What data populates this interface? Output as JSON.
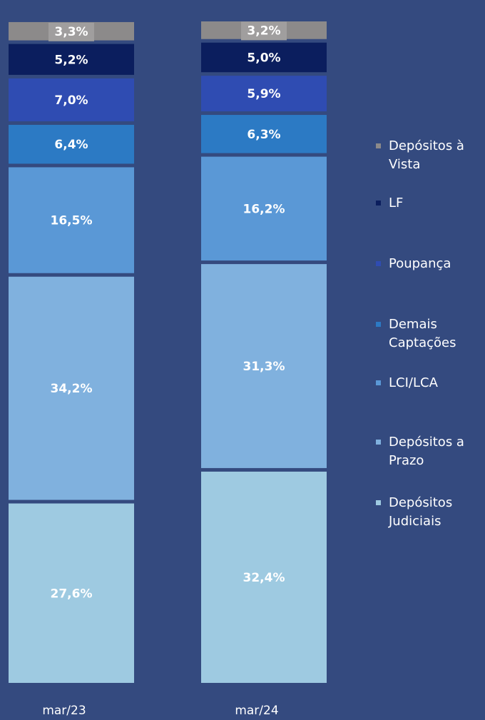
{
  "chart_data": {
    "type": "stacked_bar",
    "categories": [
      "mar/23",
      "mar/24"
    ],
    "series": [
      {
        "name": "Depósitos Judiciais",
        "color": "#9ecae1",
        "values": [
          27.6,
          32.4
        ],
        "value_labels": [
          "27,6%",
          "32,4%"
        ]
      },
      {
        "name": "Depósitos a Prazo",
        "color": "#80b1de",
        "values": [
          34.2,
          31.3
        ],
        "value_labels": [
          "34,2%",
          "31,3%"
        ]
      },
      {
        "name": "LCI/LCA",
        "color": "#5a98d6",
        "values": [
          16.5,
          16.2
        ],
        "value_labels": [
          "16,5%",
          "16,2%"
        ]
      },
      {
        "name": "Demais Captações",
        "color": "#2c7ac4",
        "values": [
          6.4,
          6.3
        ],
        "value_labels": [
          "6,4%",
          "6,3%"
        ]
      },
      {
        "name": "Poupança",
        "color": "#2f4cb2",
        "values": [
          7.0,
          5.9
        ],
        "value_labels": [
          "7,0%",
          "5,9%"
        ]
      },
      {
        "name": "LF",
        "color": "#0b1e5e",
        "values": [
          5.2,
          5.0
        ],
        "value_labels": [
          "5,2%",
          "5,0%"
        ]
      },
      {
        "name": "Depósitos à Vista",
        "color": "#8c8a8a",
        "values": [
          3.3,
          3.2
        ],
        "value_labels": [
          "3,3%",
          "3,2%"
        ]
      }
    ]
  }
}
